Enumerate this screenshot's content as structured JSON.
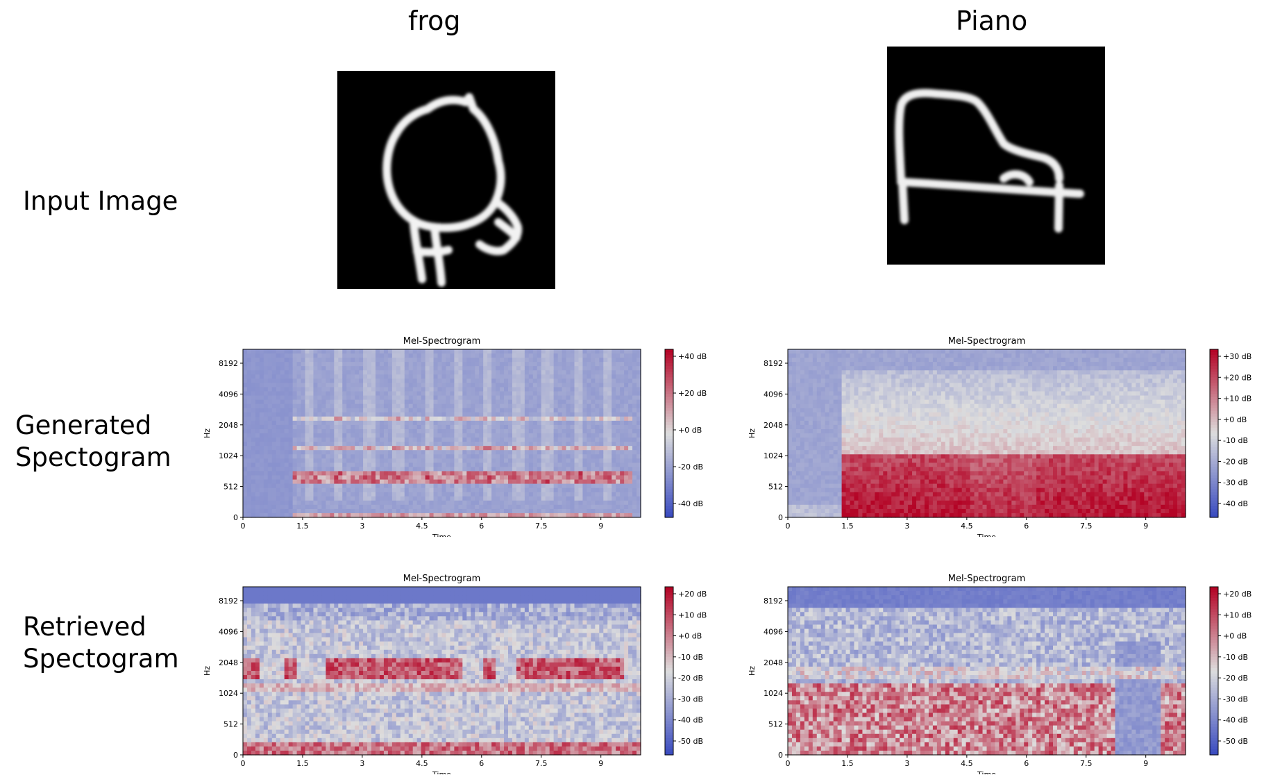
{
  "columns": [
    {
      "title": "frog"
    },
    {
      "title": "Piano"
    }
  ],
  "rows": [
    {
      "label_line1": "Input Image",
      "label_line2": ""
    },
    {
      "label_line1": "Generated",
      "label_line2": "Spectogram"
    },
    {
      "label_line1": "Retrieved",
      "label_line2": "Spectogram"
    }
  ],
  "input_images": [
    {
      "subject": "frog sketch",
      "color_scheme": "white strokes on black"
    },
    {
      "subject": "piano sketch",
      "color_scheme": "white strokes on black"
    }
  ],
  "chart_data": [
    {
      "type": "heatmap",
      "title": "Mel-Spectrogram",
      "xlabel": "Time",
      "ylabel": "Hz",
      "x_ticks": [
        "0",
        "1.5",
        "3",
        "4.5",
        "6",
        "7.5",
        "9"
      ],
      "y_ticks": [
        "0",
        "512",
        "1024",
        "2048",
        "4096",
        "8192"
      ],
      "colorbar_ticks": [
        "+40 dB",
        "+20 dB",
        "+0 dB",
        "-20 dB",
        "-40 dB"
      ],
      "colormap": "coolwarm",
      "cmap_colors": [
        "#3b4cc0",
        "#dddddd",
        "#b40426"
      ]
    },
    {
      "type": "heatmap",
      "title": "Mel-Spectrogram",
      "xlabel": "Time",
      "ylabel": "Hz",
      "x_ticks": [
        "0",
        "1.5",
        "3",
        "4.5",
        "6",
        "7.5",
        "9"
      ],
      "y_ticks": [
        "0",
        "512",
        "1024",
        "2048",
        "4096",
        "8192"
      ],
      "colorbar_ticks": [
        "+30 dB",
        "+20 dB",
        "+10 dB",
        "+0 dB",
        "-10 dB",
        "-20 dB",
        "-30 dB",
        "-40 dB"
      ],
      "colormap": "coolwarm",
      "cmap_colors": [
        "#3b4cc0",
        "#dddddd",
        "#b40426"
      ]
    },
    {
      "type": "heatmap",
      "title": "Mel-Spectrogram",
      "xlabel": "Time",
      "ylabel": "Hz",
      "x_ticks": [
        "0",
        "1.5",
        "3",
        "4.5",
        "6",
        "7.5",
        "9"
      ],
      "y_ticks": [
        "0",
        "512",
        "1024",
        "2048",
        "4096",
        "8192"
      ],
      "colorbar_ticks": [
        "+20 dB",
        "+10 dB",
        "+0 dB",
        "-10 dB",
        "-20 dB",
        "-30 dB",
        "-40 dB",
        "-50 dB"
      ],
      "colormap": "coolwarm",
      "cmap_colors": [
        "#3b4cc0",
        "#dddddd",
        "#b40426"
      ]
    },
    {
      "type": "heatmap",
      "title": "Mel-Spectrogram",
      "xlabel": "Time",
      "ylabel": "Hz",
      "x_ticks": [
        "0",
        "1.5",
        "3",
        "4.5",
        "6",
        "7.5",
        "9"
      ],
      "y_ticks": [
        "0",
        "512",
        "1024",
        "2048",
        "4096",
        "8192"
      ],
      "colorbar_ticks": [
        "+20 dB",
        "+10 dB",
        "+0 dB",
        "-10 dB",
        "-20 dB",
        "-30 dB",
        "-40 dB",
        "-50 dB"
      ],
      "colormap": "coolwarm",
      "cmap_colors": [
        "#3b4cc0",
        "#dddddd",
        "#b40426"
      ]
    }
  ]
}
